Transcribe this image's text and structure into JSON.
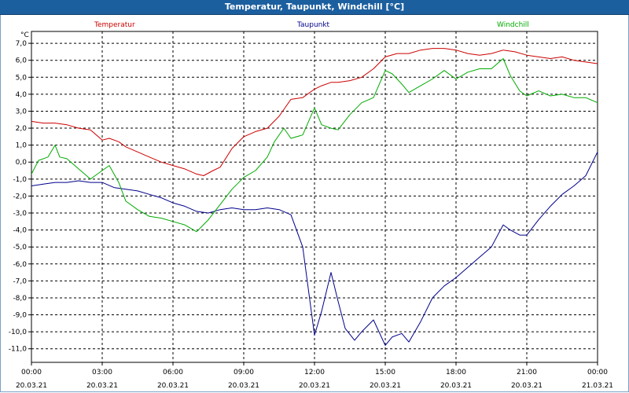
{
  "chart_data": {
    "type": "line",
    "title": "Temperatur, Taupunkt, Windchill [°C]",
    "ylabel": "°C",
    "xlabel": "",
    "ylim": [
      -11.8,
      7.7
    ],
    "xlim": [
      0,
      24
    ],
    "yticks": [
      "7,0",
      "6,0",
      "5,0",
      "4,0",
      "3,0",
      "2,0",
      "1,0",
      "0,0",
      "-1,0",
      "-2,0",
      "-3,0",
      "-4,0",
      "-5,0",
      "-6,0",
      "-7,0",
      "-8,0",
      "-9,0",
      "-10,0",
      "-11,0"
    ],
    "ytick_values": [
      7,
      6,
      5,
      4,
      3,
      2,
      1,
      0,
      -1,
      -2,
      -3,
      -4,
      -5,
      -6,
      -7,
      -8,
      -9,
      -10,
      -11
    ],
    "xticks": [
      {
        "x": 0,
        "time": "00:00",
        "date": "20.03.21"
      },
      {
        "x": 3,
        "time": "03:00",
        "date": "20.03.21"
      },
      {
        "x": 6,
        "time": "06:00",
        "date": "20.03.21"
      },
      {
        "x": 9,
        "time": "09:00",
        "date": "20.03.21"
      },
      {
        "x": 12,
        "time": "12:00",
        "date": "20.03.21"
      },
      {
        "x": 15,
        "time": "15:00",
        "date": "20.03.21"
      },
      {
        "x": 18,
        "time": "18:00",
        "date": "20.03.21"
      },
      {
        "x": 21,
        "time": "21:00",
        "date": "20.03.21"
      },
      {
        "x": 24,
        "time": "00:00",
        "date": "21.03.21"
      }
    ],
    "grid": true,
    "series": [
      {
        "name": "Temperatur",
        "color": "#cc0000",
        "x": [
          0,
          0.5,
          1,
          1.5,
          2,
          2.5,
          3,
          3.3,
          3.7,
          4,
          4.5,
          5,
          5.5,
          6,
          6.5,
          7,
          7.3,
          7.7,
          8,
          8.5,
          9,
          9.5,
          10,
          10.5,
          11,
          11.5,
          12,
          12.3,
          12.7,
          13,
          13.5,
          14,
          14.5,
          15,
          15.5,
          16,
          16.5,
          17,
          17.5,
          18,
          18.5,
          19,
          19.5,
          20,
          20.5,
          21,
          21.5,
          22,
          22.5,
          23,
          23.5,
          24
        ],
        "values": [
          2.4,
          2.3,
          2.3,
          2.2,
          2.0,
          1.9,
          1.3,
          1.4,
          1.2,
          0.9,
          0.6,
          0.3,
          0.0,
          -0.2,
          -0.4,
          -0.7,
          -0.8,
          -0.5,
          -0.3,
          0.8,
          1.5,
          1.8,
          2.0,
          2.7,
          3.7,
          3.8,
          4.3,
          4.5,
          4.7,
          4.7,
          4.8,
          5.0,
          5.5,
          6.2,
          6.4,
          6.4,
          6.6,
          6.7,
          6.7,
          6.6,
          6.4,
          6.3,
          6.4,
          6.6,
          6.5,
          6.3,
          6.2,
          6.1,
          6.2,
          6.0,
          5.9,
          5.8
        ]
      },
      {
        "name": "Taupunkt",
        "color": "#00008b",
        "x": [
          0,
          0.5,
          1,
          1.5,
          2,
          2.5,
          3,
          3.5,
          4,
          4.5,
          5,
          5.5,
          6,
          6.5,
          7,
          7.5,
          8,
          8.5,
          9,
          9.5,
          10,
          10.5,
          11,
          11.5,
          12,
          12.3,
          12.7,
          13,
          13.3,
          13.7,
          14,
          14.5,
          15,
          15.3,
          15.7,
          16,
          16.5,
          17,
          17.5,
          18,
          18.5,
          19,
          19.5,
          20,
          20.3,
          20.7,
          21,
          21.5,
          22,
          22.5,
          23,
          23.5,
          24
        ],
        "values": [
          -1.4,
          -1.3,
          -1.2,
          -1.2,
          -1.1,
          -1.2,
          -1.2,
          -1.5,
          -1.6,
          -1.7,
          -1.9,
          -2.1,
          -2.4,
          -2.6,
          -2.9,
          -3.0,
          -2.8,
          -2.7,
          -2.8,
          -2.8,
          -2.7,
          -2.8,
          -3.1,
          -5.0,
          -10.2,
          -8.8,
          -6.5,
          -8.2,
          -9.8,
          -10.5,
          -10.0,
          -9.3,
          -10.8,
          -10.3,
          -10.1,
          -10.6,
          -9.4,
          -8.0,
          -7.3,
          -6.8,
          -6.2,
          -5.6,
          -5.0,
          -3.7,
          -4.0,
          -4.3,
          -4.3,
          -3.4,
          -2.6,
          -1.9,
          -1.4,
          -0.8,
          0.6
        ]
      },
      {
        "name": "Windchill",
        "color": "#00aa00",
        "x": [
          0,
          0.3,
          0.7,
          1,
          1.2,
          1.5,
          2,
          2.5,
          3,
          3.3,
          3.7,
          4,
          4.5,
          5,
          5.5,
          6,
          6.5,
          7,
          7.5,
          8,
          8.5,
          9,
          9.5,
          10,
          10.3,
          10.7,
          11,
          11.5,
          12,
          12.3,
          12.7,
          13,
          13.5,
          14,
          14.5,
          15,
          15.3,
          15.7,
          16,
          16.5,
          17,
          17.5,
          18,
          18.5,
          19,
          19.5,
          20,
          20.3,
          20.7,
          21,
          21.5,
          22,
          22.5,
          23,
          23.5,
          24
        ],
        "values": [
          -0.7,
          0.1,
          0.3,
          1.0,
          0.3,
          0.2,
          -0.4,
          -1.0,
          -0.5,
          -0.2,
          -1.2,
          -2.3,
          -2.8,
          -3.2,
          -3.3,
          -3.5,
          -3.7,
          -4.1,
          -3.4,
          -2.5,
          -1.6,
          -0.9,
          -0.5,
          0.3,
          1.2,
          2.0,
          1.4,
          1.6,
          3.2,
          2.2,
          2.0,
          1.9,
          2.8,
          3.5,
          3.8,
          5.4,
          5.2,
          4.6,
          4.1,
          4.5,
          4.9,
          5.4,
          4.9,
          5.3,
          5.5,
          5.5,
          6.1,
          5.1,
          4.2,
          3.9,
          4.2,
          3.9,
          4.0,
          3.8,
          3.8,
          3.5
        ]
      }
    ]
  }
}
